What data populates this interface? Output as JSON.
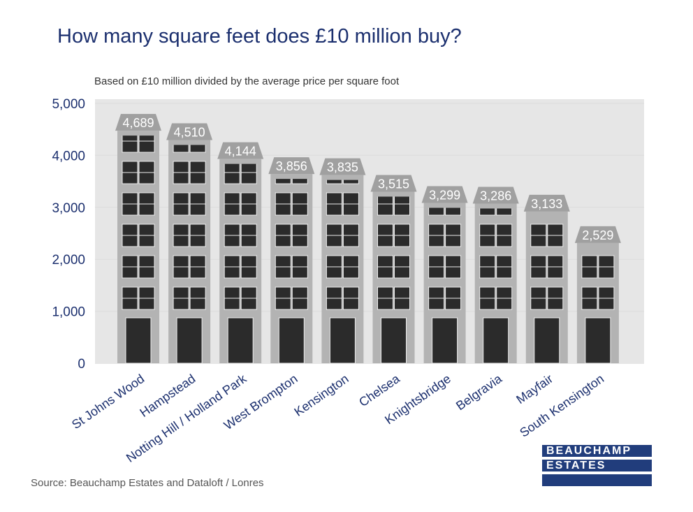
{
  "chart_data": {
    "type": "bar",
    "title": "How many square feet does £10 million buy?",
    "subtitle": "Based on £10 million divided by the average price per square foot",
    "categories": [
      "St Johns Wood",
      "Hampstead",
      "Notting Hill / Holland Park",
      "West Brompton",
      "Kensington",
      "Chelsea",
      "Knightsbridge",
      "Belgravia",
      "Mayfair",
      "South Kensington"
    ],
    "values": [
      4689,
      4510,
      4144,
      3856,
      3835,
      3515,
      3299,
      3286,
      3133,
      2529
    ],
    "value_labels": [
      "4,689",
      "4,510",
      "4,144",
      "3,856",
      "3,835",
      "3,515",
      "3,299",
      "3,286",
      "3,133",
      "2,529"
    ],
    "yticks": [
      0,
      1000,
      2000,
      3000,
      4000,
      5000
    ],
    "ytick_labels": [
      "0",
      "1,000",
      "2,000",
      "3,000",
      "4,000",
      "5,000"
    ],
    "ylim": [
      0,
      5000
    ],
    "xlabel": "",
    "ylabel": "",
    "grid": true,
    "colors": {
      "plot_bg": "#e6e6e6",
      "building": "#b3b3b3",
      "roof": "#a0a0a0",
      "window": "#2b2b2b",
      "axis_text": "#1b2f6e"
    }
  },
  "source": "Source: Beauchamp Estates and Dataloft / Lonres",
  "logo": {
    "line1": "BEAUCHAMP",
    "line2": "ESTATES"
  }
}
